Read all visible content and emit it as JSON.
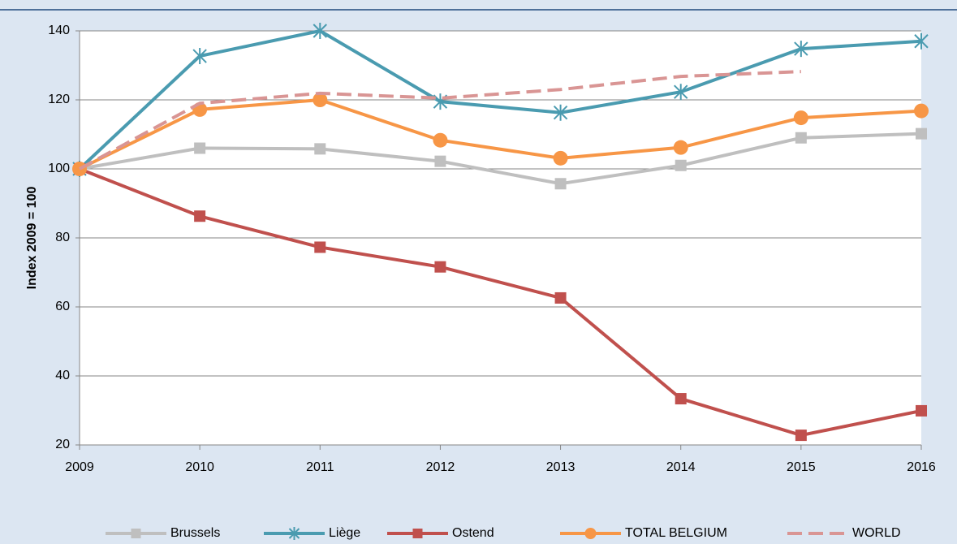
{
  "chart_data": {
    "type": "line",
    "y_label": "Index 2009 = 100",
    "x": [
      2009,
      2010,
      2011,
      2012,
      2013,
      2014,
      2015,
      2016
    ],
    "xlim": [
      2009,
      2016
    ],
    "xticks": [
      2009,
      2010,
      2011,
      2012,
      2013,
      2014,
      2015,
      2016
    ],
    "ylim": [
      20,
      140
    ],
    "yticks": [
      20,
      40,
      60,
      80,
      100,
      120,
      140
    ],
    "grid": true,
    "legend": "bottom",
    "series": [
      {
        "name": "Brussels",
        "color": "#bfbfbf",
        "marker": "square",
        "values": [
          100,
          106,
          105.8,
          102.2,
          95.7,
          101,
          109,
          110.2
        ]
      },
      {
        "name": "Liège",
        "color": "#4a9bb0",
        "marker": "asterisk",
        "values": [
          100,
          132.7,
          140,
          119.5,
          116.3,
          122.3,
          134.8,
          137
        ]
      },
      {
        "name": "Ostend",
        "color": "#c0504d",
        "marker": "square",
        "values": [
          100,
          86.3,
          77.3,
          71.6,
          62.6,
          33.4,
          22.8,
          29.9
        ]
      },
      {
        "name": "TOTAL BELGIUM",
        "color": "#f79646",
        "marker": "circle",
        "values": [
          100,
          117.2,
          120,
          108.3,
          103.1,
          106.2,
          114.8,
          116.8
        ]
      },
      {
        "name": "WORLD",
        "color": "#d99594",
        "dashed": true,
        "values": [
          100,
          119,
          121.9,
          120.5,
          123,
          126.8,
          128.2,
          null
        ]
      }
    ]
  }
}
